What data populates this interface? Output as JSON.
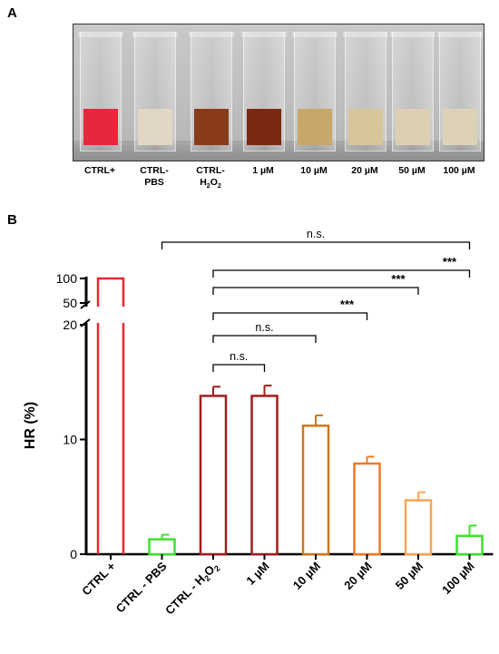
{
  "panel_a": {
    "letter": "A",
    "tubes": [
      {
        "label_line1": "CTRL+",
        "label_line2": "",
        "sub": "",
        "color": "#e5283b"
      },
      {
        "label_line1": "CTRL-",
        "label_line2": "PBS",
        "sub": "",
        "color": "#e2d6c4"
      },
      {
        "label_line1": "CTRL-",
        "label_line2": "H",
        "sub": "2",
        "label_tail": "O",
        "sub2": "2",
        "color": "#8a3b1a"
      },
      {
        "label_line1": "1 µM",
        "label_line2": "",
        "sub": "",
        "color": "#7a2810"
      },
      {
        "label_line1": "10 µM",
        "label_line2": "",
        "sub": "",
        "color": "#c9a76a"
      },
      {
        "label_line1": "20 µM",
        "label_line2": "",
        "sub": "",
        "color": "#d8c59a"
      },
      {
        "label_line1": "50 µM",
        "label_line2": "",
        "sub": "",
        "color": "#ddd0b0"
      },
      {
        "label_line1": "100 µM",
        "label_line2": "",
        "sub": "",
        "color": "#ddd2b8"
      }
    ]
  },
  "panel_b": {
    "letter": "B"
  },
  "chart_data": {
    "type": "bar",
    "ylabel": "HR (%)",
    "scale": "broken y-axis: 0–20 linear, break, 50–100",
    "yticks_lower": [
      0,
      10,
      20
    ],
    "yticks_upper": [
      50,
      100
    ],
    "categories": [
      "CTRL +",
      "CTRL - PBS",
      "CTRL - H2O2",
      "1 µM",
      "10 µM",
      "20 µM",
      "50 µM",
      "100 µM"
    ],
    "category_sub": {
      "2": "2"
    },
    "values": [
      100,
      1.3,
      13.8,
      13.8,
      11.2,
      7.9,
      4.7,
      1.6
    ],
    "errors": [
      0,
      0.4,
      0.8,
      0.9,
      0.9,
      0.6,
      0.7,
      0.9
    ],
    "colors": [
      "#f0262e",
      "#3fe02f",
      "#a51c1c",
      "#a51c1c",
      "#c9781e",
      "#ee7a25",
      "#f7a553",
      "#3fe02f"
    ],
    "significance": [
      {
        "from": 1,
        "to": 7,
        "label": "n.s."
      },
      {
        "from": 2,
        "to": 7,
        "label": "***"
      },
      {
        "from": 2,
        "to": 6,
        "label": "***"
      },
      {
        "from": 2,
        "to": 5,
        "label": "***"
      },
      {
        "from": 2,
        "to": 4,
        "label": "n.s."
      },
      {
        "from": 2,
        "to": 3,
        "label": "n.s."
      }
    ]
  }
}
